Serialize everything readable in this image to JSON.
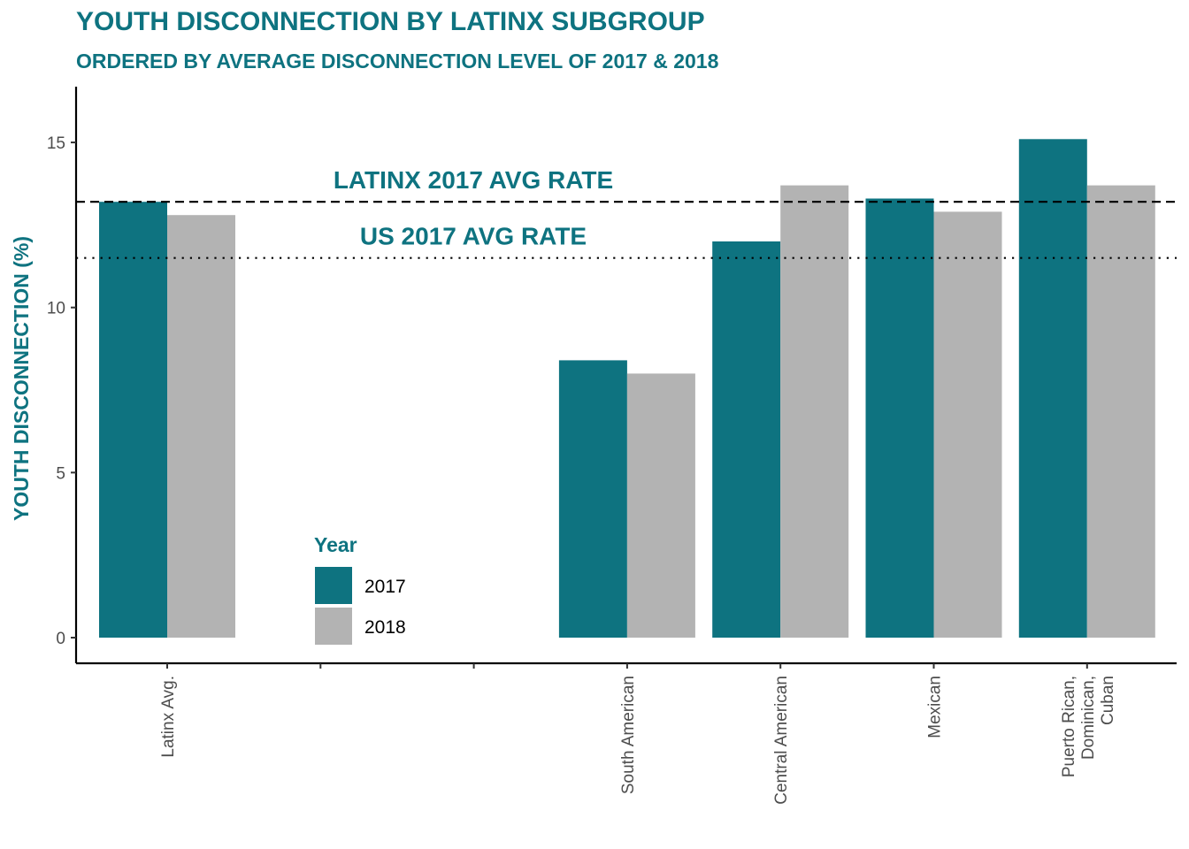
{
  "chart_data": {
    "type": "bar",
    "title": "YOUTH DISCONNECTION BY LATINX SUBGROUP",
    "subtitle": "ORDERED BY AVERAGE DISCONNECTION LEVEL OF 2017 & 2018",
    "xlabel": "",
    "ylabel": "YOUTH DISCONNECTION (%)",
    "categories": [
      "Latinx Avg.",
      "",
      "",
      "South American",
      "Central American",
      "Mexican",
      "Puerto Rican,\nDominican,\nCuban"
    ],
    "series": [
      {
        "name": "2017",
        "color": "#0e7380",
        "values": [
          13.2,
          null,
          null,
          8.4,
          12.0,
          13.3,
          15.1
        ]
      },
      {
        "name": "2018",
        "color": "#b3b3b3",
        "values": [
          12.8,
          null,
          null,
          8.0,
          13.7,
          12.9,
          13.7
        ]
      }
    ],
    "ylim": [
      0,
      16.7
    ],
    "yticks": [
      0,
      5,
      10,
      15
    ],
    "grid": false,
    "legend": {
      "title": "Year",
      "placement": "bottom-left-inside",
      "entries": [
        "2017",
        "2018"
      ]
    },
    "reference_lines": [
      {
        "label": "LATINX 2017 AVG RATE",
        "value": 13.2,
        "style": "dashed"
      },
      {
        "label": "US 2017 AVG RATE",
        "value": 11.5,
        "style": "dotted"
      }
    ]
  }
}
